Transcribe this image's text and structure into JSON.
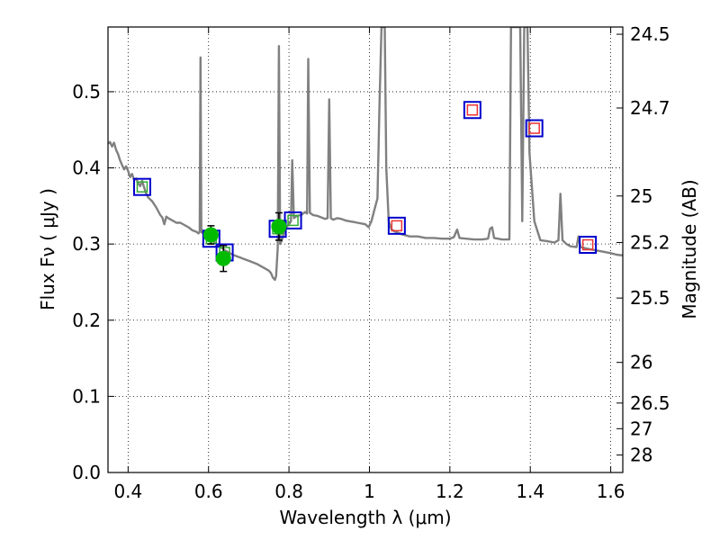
{
  "chart_data": {
    "type": "scatter",
    "xlabel": "Wavelength  λ (μm)",
    "ylabel": "Flux  Fν ( μJy )",
    "y2label": "Magnitude (AB)",
    "xlim": [
      0.35,
      1.63
    ],
    "ylim": [
      0.0,
      0.585
    ],
    "grid": true,
    "x_ticks": [
      {
        "value": 0.4,
        "label": "0.4"
      },
      {
        "value": 0.6,
        "label": "0.6"
      },
      {
        "value": 0.8,
        "label": "0.8"
      },
      {
        "value": 1.0,
        "label": "1"
      },
      {
        "value": 1.2,
        "label": "1.2"
      },
      {
        "value": 1.4,
        "label": "1.4"
      },
      {
        "value": 1.6,
        "label": "1.6"
      }
    ],
    "y_ticks": [
      {
        "value": 0.0,
        "label": "0.0"
      },
      {
        "value": 0.1,
        "label": "0.1"
      },
      {
        "value": 0.2,
        "label": "0.2"
      },
      {
        "value": 0.3,
        "label": "0.3"
      },
      {
        "value": 0.4,
        "label": "0.4"
      },
      {
        "value": 0.5,
        "label": "0.5"
      }
    ],
    "y2_ticks": [
      {
        "value": 24.5,
        "label": "24.5"
      },
      {
        "value": 24.7,
        "label": "24.7"
      },
      {
        "value": 25,
        "label": "25"
      },
      {
        "value": 25.2,
        "label": "25.2"
      },
      {
        "value": 25.5,
        "label": "25.5"
      },
      {
        "value": 26,
        "label": "26"
      },
      {
        "value": 26.5,
        "label": "26.5"
      },
      {
        "value": 27,
        "label": "27"
      },
      {
        "value": 28,
        "label": "28"
      }
    ],
    "colors": {
      "spectrum": "#808080",
      "observed": "#00bb00",
      "model_box": "#0000cc",
      "model_inner_green": "#33aa33",
      "model_inner_red": "#ee3333",
      "errorbar": "#000000"
    },
    "series": [
      {
        "kind": "spectrum",
        "points": [
          [
            0.35,
            0.432
          ],
          [
            0.355,
            0.434
          ],
          [
            0.36,
            0.428
          ],
          [
            0.365,
            0.433
          ],
          [
            0.37,
            0.424
          ],
          [
            0.375,
            0.418
          ],
          [
            0.38,
            0.41
          ],
          [
            0.385,
            0.404
          ],
          [
            0.39,
            0.398
          ],
          [
            0.395,
            0.402
          ],
          [
            0.4,
            0.396
          ],
          [
            0.405,
            0.388
          ],
          [
            0.41,
            0.392
          ],
          [
            0.415,
            0.384
          ],
          [
            0.42,
            0.386
          ],
          [
            0.425,
            0.38
          ],
          [
            0.43,
            0.376
          ],
          [
            0.435,
            0.383
          ],
          [
            0.44,
            0.374
          ],
          [
            0.445,
            0.366
          ],
          [
            0.45,
            0.361
          ],
          [
            0.46,
            0.356
          ],
          [
            0.47,
            0.348
          ],
          [
            0.48,
            0.338
          ],
          [
            0.485,
            0.335
          ],
          [
            0.49,
            0.326
          ],
          [
            0.495,
            0.336
          ],
          [
            0.5,
            0.334
          ],
          [
            0.51,
            0.331
          ],
          [
            0.52,
            0.328
          ],
          [
            0.53,
            0.328
          ],
          [
            0.54,
            0.325
          ],
          [
            0.55,
            0.322
          ],
          [
            0.56,
            0.318
          ],
          [
            0.57,
            0.316
          ],
          [
            0.575,
            0.314
          ],
          [
            0.578,
            0.316
          ],
          [
            0.58,
            0.545
          ],
          [
            0.582,
            0.316
          ],
          [
            0.59,
            0.312
          ],
          [
            0.6,
            0.308
          ],
          [
            0.61,
            0.304
          ],
          [
            0.62,
            0.3
          ],
          [
            0.63,
            0.296
          ],
          [
            0.64,
            0.292
          ],
          [
            0.65,
            0.289
          ],
          [
            0.66,
            0.286
          ],
          [
            0.67,
            0.284
          ],
          [
            0.68,
            0.282
          ],
          [
            0.69,
            0.28
          ],
          [
            0.7,
            0.278
          ],
          [
            0.71,
            0.276
          ],
          [
            0.72,
            0.274
          ],
          [
            0.73,
            0.271
          ],
          [
            0.74,
            0.268
          ],
          [
            0.75,
            0.265
          ],
          [
            0.755,
            0.262
          ],
          [
            0.76,
            0.256
          ],
          [
            0.765,
            0.253
          ],
          [
            0.768,
            0.258
          ],
          [
            0.772,
            0.295
          ],
          [
            0.775,
            0.56
          ],
          [
            0.778,
            0.3
          ],
          [
            0.782,
            0.305
          ],
          [
            0.786,
            0.312
          ],
          [
            0.79,
            0.318
          ],
          [
            0.795,
            0.323
          ],
          [
            0.8,
            0.326
          ],
          [
            0.805,
            0.33
          ],
          [
            0.808,
            0.41
          ],
          [
            0.812,
            0.334
          ],
          [
            0.82,
            0.337
          ],
          [
            0.83,
            0.338
          ],
          [
            0.84,
            0.342
          ],
          [
            0.845,
            0.34
          ],
          [
            0.848,
            0.543
          ],
          [
            0.852,
            0.341
          ],
          [
            0.86,
            0.338
          ],
          [
            0.87,
            0.337
          ],
          [
            0.88,
            0.335
          ],
          [
            0.89,
            0.333
          ],
          [
            0.896,
            0.334
          ],
          [
            0.9,
            0.49
          ],
          [
            0.904,
            0.334
          ],
          [
            0.91,
            0.332
          ],
          [
            0.92,
            0.334
          ],
          [
            0.93,
            0.333
          ],
          [
            0.94,
            0.331
          ],
          [
            0.95,
            0.33
          ],
          [
            0.96,
            0.329
          ],
          [
            0.97,
            0.328
          ],
          [
            0.98,
            0.327
          ],
          [
            0.99,
            0.326
          ],
          [
            0.998,
            0.322
          ],
          [
            1.005,
            0.33
          ],
          [
            1.01,
            0.34
          ],
          [
            1.02,
            0.36
          ],
          [
            1.025,
            0.48
          ],
          [
            1.03,
            0.585
          ],
          [
            1.038,
            0.585
          ],
          [
            1.042,
            0.4
          ],
          [
            1.048,
            0.33
          ],
          [
            1.055,
            0.319
          ],
          [
            1.065,
            0.316
          ],
          [
            1.08,
            0.313
          ],
          [
            1.1,
            0.31
          ],
          [
            1.12,
            0.31
          ],
          [
            1.14,
            0.308
          ],
          [
            1.16,
            0.308
          ],
          [
            1.18,
            0.307
          ],
          [
            1.2,
            0.307
          ],
          [
            1.21,
            0.309
          ],
          [
            1.218,
            0.319
          ],
          [
            1.224,
            0.308
          ],
          [
            1.24,
            0.307
          ],
          [
            1.26,
            0.306
          ],
          [
            1.28,
            0.306
          ],
          [
            1.295,
            0.307
          ],
          [
            1.3,
            0.32
          ],
          [
            1.305,
            0.322
          ],
          [
            1.31,
            0.308
          ],
          [
            1.33,
            0.306
          ],
          [
            1.345,
            0.306
          ],
          [
            1.348,
            0.306
          ],
          [
            1.352,
            0.585
          ],
          [
            1.363,
            0.585
          ],
          [
            1.368,
            0.585
          ],
          [
            1.375,
            0.585
          ],
          [
            1.38,
            0.33
          ],
          [
            1.385,
            0.585
          ],
          [
            1.393,
            0.585
          ],
          [
            1.398,
            0.42
          ],
          [
            1.41,
            0.33
          ],
          [
            1.425,
            0.305
          ],
          [
            1.44,
            0.304
          ],
          [
            1.46,
            0.302
          ],
          [
            1.47,
            0.305
          ],
          [
            1.475,
            0.366
          ],
          [
            1.48,
            0.305
          ],
          [
            1.49,
            0.3
          ],
          [
            1.5,
            0.297
          ],
          [
            1.515,
            0.296
          ],
          [
            1.52,
            0.31
          ],
          [
            1.525,
            0.296
          ],
          [
            1.54,
            0.294
          ],
          [
            1.56,
            0.292
          ],
          [
            1.58,
            0.29
          ],
          [
            1.6,
            0.288
          ],
          [
            1.615,
            0.286
          ],
          [
            1.63,
            0.285
          ]
        ]
      },
      {
        "kind": "model-boxes",
        "points": [
          {
            "x": 0.435,
            "y": 0.375,
            "inner": "green"
          },
          {
            "x": 0.607,
            "y": 0.307,
            "inner": "green"
          },
          {
            "x": 0.64,
            "y": 0.289,
            "inner": "green"
          },
          {
            "x": 0.772,
            "y": 0.32,
            "inner": "green"
          },
          {
            "x": 0.81,
            "y": 0.331,
            "inner": "green"
          },
          {
            "x": 1.068,
            "y": 0.324,
            "inner": "red"
          },
          {
            "x": 1.256,
            "y": 0.476,
            "inner": "red"
          },
          {
            "x": 1.41,
            "y": 0.452,
            "inner": "red"
          },
          {
            "x": 1.543,
            "y": 0.299,
            "inner": "red"
          }
        ]
      },
      {
        "kind": "observed",
        "points": [
          {
            "x": 0.606,
            "y": 0.312,
            "err": 0.012
          },
          {
            "x": 0.637,
            "y": 0.281,
            "err": 0.017
          },
          {
            "x": 0.775,
            "y": 0.323,
            "err": 0.018
          }
        ]
      }
    ]
  }
}
